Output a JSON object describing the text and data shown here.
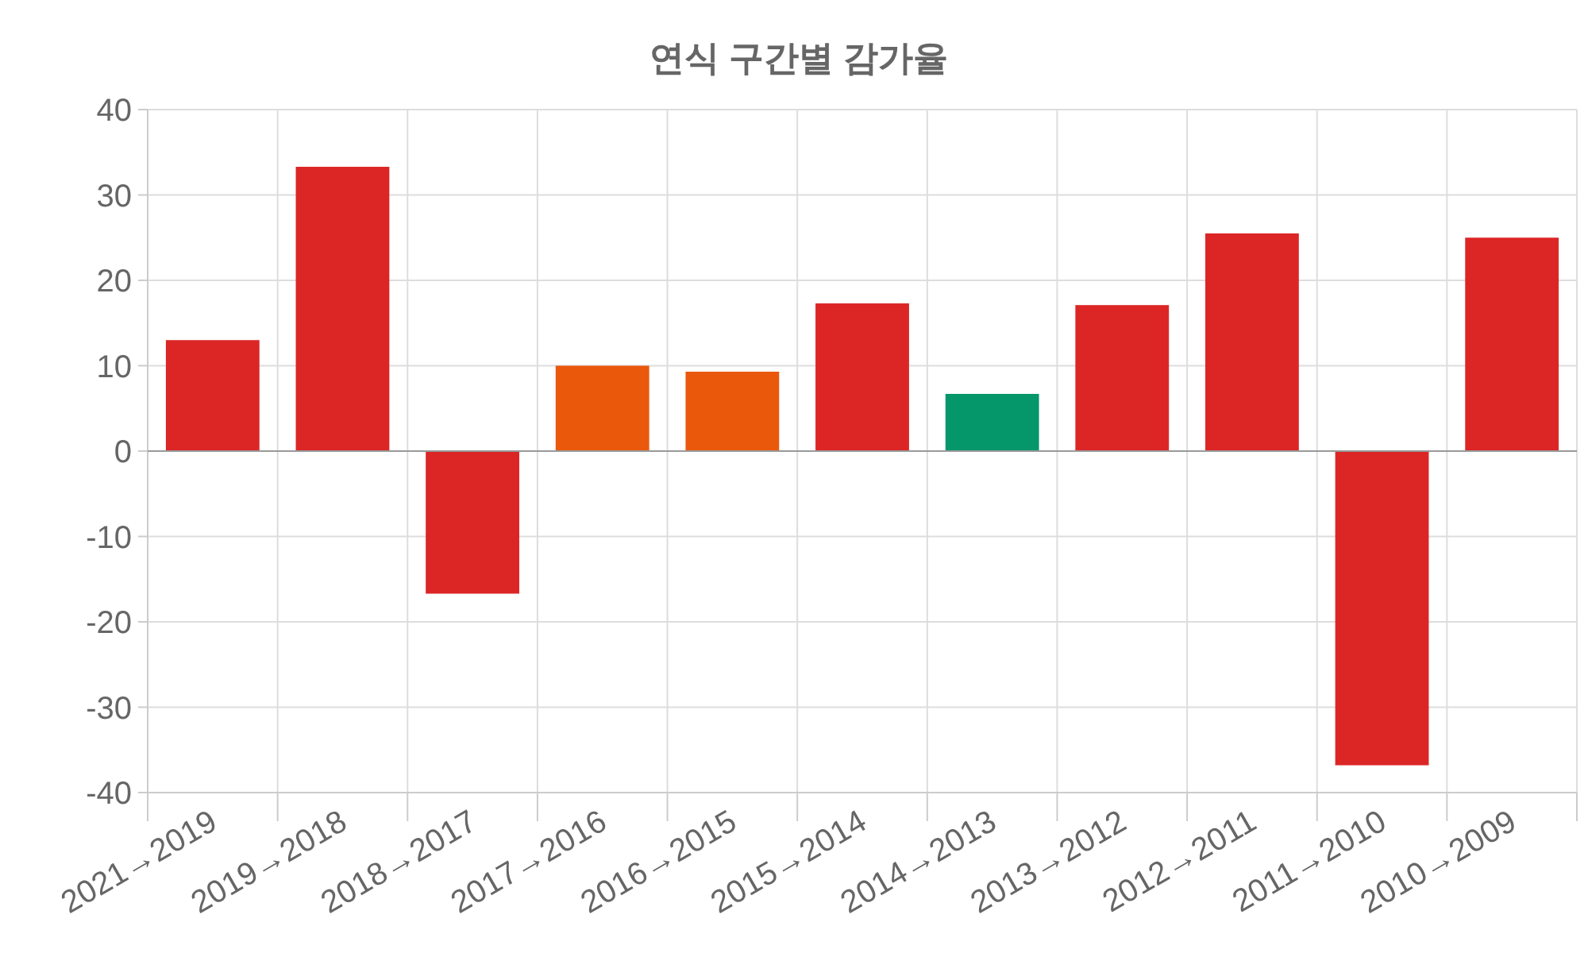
{
  "chart_data": {
    "type": "bar",
    "title": "연식 구간별 감가율",
    "categories": [
      "2021→2019",
      "2019→2018",
      "2018→2017",
      "2017→2016",
      "2016→2015",
      "2015→2014",
      "2014→2013",
      "2013→2012",
      "2012→2011",
      "2011→2010",
      "2010→2009"
    ],
    "values": [
      13.0,
      33.3,
      -16.7,
      10.0,
      9.3,
      17.3,
      6.7,
      17.1,
      25.5,
      -36.8,
      25.0
    ],
    "colors": [
      "#dc2626",
      "#dc2626",
      "#dc2626",
      "#ea580c",
      "#ea580c",
      "#dc2626",
      "#059669",
      "#dc2626",
      "#dc2626",
      "#dc2626",
      "#dc2626"
    ],
    "ylim": [
      -40,
      40
    ],
    "yticks": [
      -40,
      -30,
      -20,
      -10,
      0,
      10,
      20,
      30,
      40
    ],
    "grid": true
  }
}
